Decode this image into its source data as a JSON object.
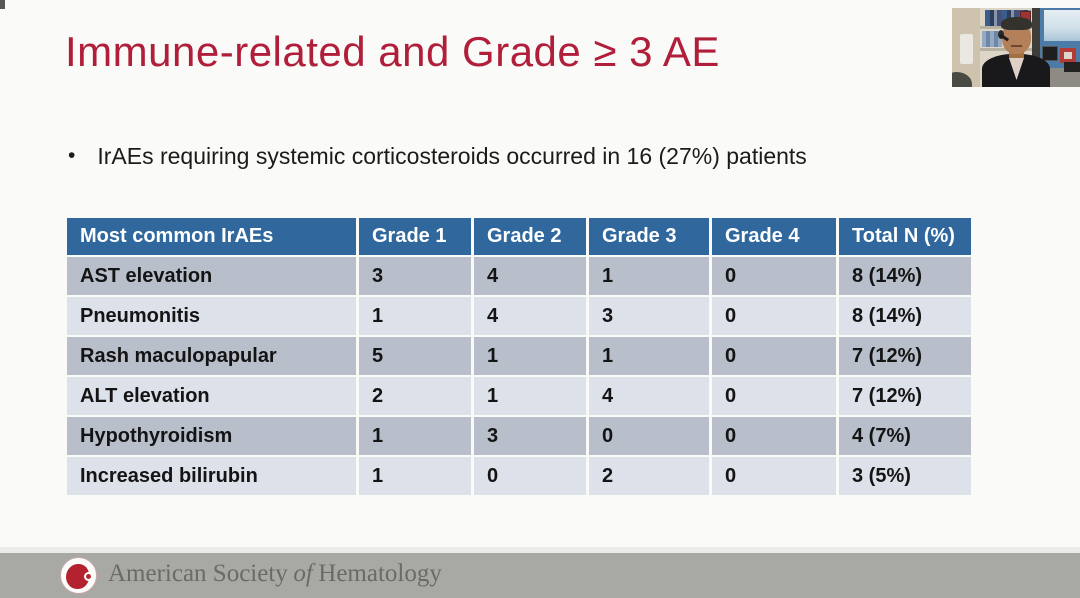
{
  "slide": {
    "title": "Immune-related and Grade ≥ 3 AE",
    "bullet_marker": "•",
    "bullet_text": "IrAEs requiring systemic corticosteroids occurred in 16 (27%) patients"
  },
  "table": {
    "headers": [
      "Most common IrAEs",
      "Grade 1",
      "Grade 2",
      "Grade 3",
      "Grade 4",
      "Total N (%)"
    ],
    "rows": [
      [
        "AST elevation",
        "3",
        "4",
        "1",
        "0",
        "8 (14%)"
      ],
      [
        "Pneumonitis",
        "1",
        "4",
        "3",
        "0",
        "8 (14%)"
      ],
      [
        "Rash maculopapular",
        "5",
        "1",
        "1",
        "0",
        "7 (12%)"
      ],
      [
        "ALT elevation",
        "2",
        "1",
        "4",
        "0",
        "7 (12%)"
      ],
      [
        "Hypothyroidism",
        "1",
        "3",
        "0",
        "0",
        "4 (7%)"
      ],
      [
        "Increased bilirubin",
        "1",
        "0",
        "2",
        "0",
        "3 (5%)"
      ]
    ]
  },
  "footer": {
    "org_prefix": "American Society",
    "org_of": "of",
    "org_suffix": "Hematology"
  },
  "colors": {
    "title_red": "#b01e3a",
    "table_header_blue": "#30689e",
    "row_dark": "#b8bfca",
    "row_light": "#dde1e9",
    "footer_gray": "#a8a8a4",
    "footer_text_gray": "#6a6a67",
    "logo_red": "#b5222f"
  }
}
